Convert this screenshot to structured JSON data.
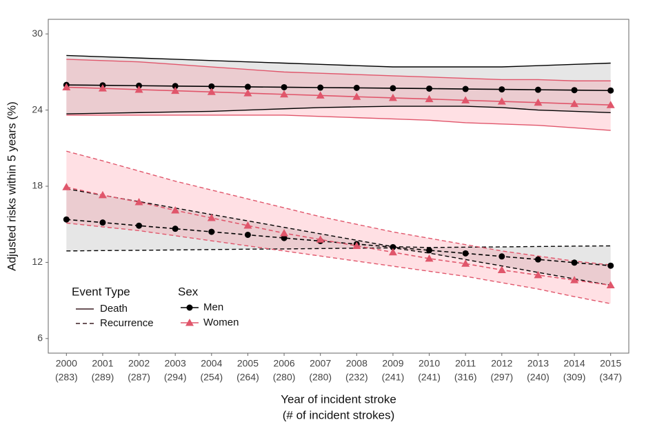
{
  "chart_data": {
    "type": "line",
    "y_label": "Adjusted risks within 5 years (%)",
    "x_label": [
      "Year of incident stroke",
      "(# of incident strokes)"
    ],
    "categories": [
      "2000",
      "2001",
      "2002",
      "2003",
      "2004",
      "2005",
      "2006",
      "2007",
      "2008",
      "2009",
      "2010",
      "2011",
      "2012",
      "2013",
      "2014",
      "2015"
    ],
    "category_counts": [
      "(283)",
      "(289)",
      "(287)",
      "(294)",
      "(254)",
      "(264)",
      "(280)",
      "(280)",
      "(232)",
      "(241)",
      "(241)",
      "(316)",
      "(297)",
      "(240)",
      "(309)",
      "(347)"
    ],
    "ylim": [
      4.85,
      31.15
    ],
    "yticks": [
      6,
      12,
      18,
      24,
      30
    ],
    "legend": {
      "event_title": "Event Type",
      "event_types": [
        {
          "name": "Death",
          "dash": "solid"
        },
        {
          "name": "Recurrence",
          "dash": "dashed"
        }
      ],
      "sex_title": "Sex",
      "sexes": [
        {
          "name": "Men",
          "color": "#000000",
          "band_color": "#808080",
          "marker": "circle"
        },
        {
          "name": "Women",
          "color": "#e0566b",
          "band_color": "#ff6478",
          "marker": "triangle"
        }
      ]
    },
    "series": [
      {
        "event": "Death",
        "sex": "Men",
        "values": [
          25.98,
          25.95,
          25.92,
          25.89,
          25.86,
          25.83,
          25.8,
          25.77,
          25.75,
          25.72,
          25.69,
          25.66,
          25.63,
          25.6,
          25.57,
          25.54
        ],
        "upper": [
          28.3,
          28.2,
          28.1,
          28.0,
          27.9,
          27.8,
          27.7,
          27.6,
          27.5,
          27.4,
          27.4,
          27.4,
          27.4,
          27.5,
          27.6,
          27.7
        ],
        "lower": [
          23.7,
          23.75,
          23.8,
          23.85,
          23.9,
          24.0,
          24.1,
          24.2,
          24.25,
          24.3,
          24.3,
          24.3,
          24.2,
          24.0,
          23.9,
          23.8
        ]
      },
      {
        "event": "Death",
        "sex": "Women",
        "values": [
          25.8,
          25.71,
          25.61,
          25.52,
          25.43,
          25.33,
          25.24,
          25.15,
          25.05,
          24.96,
          24.87,
          24.77,
          24.68,
          24.59,
          24.49,
          24.4
        ],
        "upper": [
          28.0,
          27.9,
          27.8,
          27.6,
          27.4,
          27.2,
          27.0,
          26.9,
          26.8,
          26.7,
          26.6,
          26.5,
          26.4,
          26.4,
          26.3,
          26.3
        ],
        "lower": [
          23.6,
          23.6,
          23.6,
          23.6,
          23.6,
          23.6,
          23.6,
          23.5,
          23.4,
          23.3,
          23.2,
          23.0,
          22.9,
          22.8,
          22.6,
          22.4
        ]
      },
      {
        "event": "Recurrence",
        "sex": "Men",
        "values": [
          15.38,
          15.14,
          14.89,
          14.65,
          14.41,
          14.17,
          13.92,
          13.68,
          13.44,
          13.2,
          12.95,
          12.71,
          12.47,
          12.23,
          11.98,
          11.74
        ],
        "upper": [
          17.8,
          17.29,
          16.79,
          16.28,
          15.77,
          15.27,
          14.76,
          14.25,
          13.74,
          13.24,
          13.17,
          13.2,
          13.22,
          13.25,
          13.28,
          13.3
        ],
        "lower": [
          12.9,
          12.93,
          12.95,
          12.98,
          13.01,
          13.04,
          13.06,
          13.09,
          13.12,
          13.14,
          12.73,
          12.22,
          11.72,
          11.21,
          10.7,
          10.2
        ]
      },
      {
        "event": "Recurrence",
        "sex": "Women",
        "values": [
          17.93,
          17.3,
          16.75,
          16.1,
          15.5,
          14.9,
          14.3,
          13.8,
          13.3,
          12.8,
          12.3,
          11.9,
          11.4,
          11.0,
          10.6,
          10.2
        ],
        "upper": [
          20.76,
          20.0,
          19.2,
          18.4,
          17.7,
          17.0,
          16.3,
          15.6,
          15.0,
          14.4,
          13.9,
          13.4,
          12.9,
          12.5,
          12.1,
          11.8
        ],
        "lower": [
          15.1,
          14.8,
          14.5,
          14.1,
          13.7,
          13.3,
          12.9,
          12.5,
          12.1,
          11.7,
          11.3,
          10.9,
          10.4,
          9.9,
          9.3,
          8.75
        ]
      }
    ]
  }
}
